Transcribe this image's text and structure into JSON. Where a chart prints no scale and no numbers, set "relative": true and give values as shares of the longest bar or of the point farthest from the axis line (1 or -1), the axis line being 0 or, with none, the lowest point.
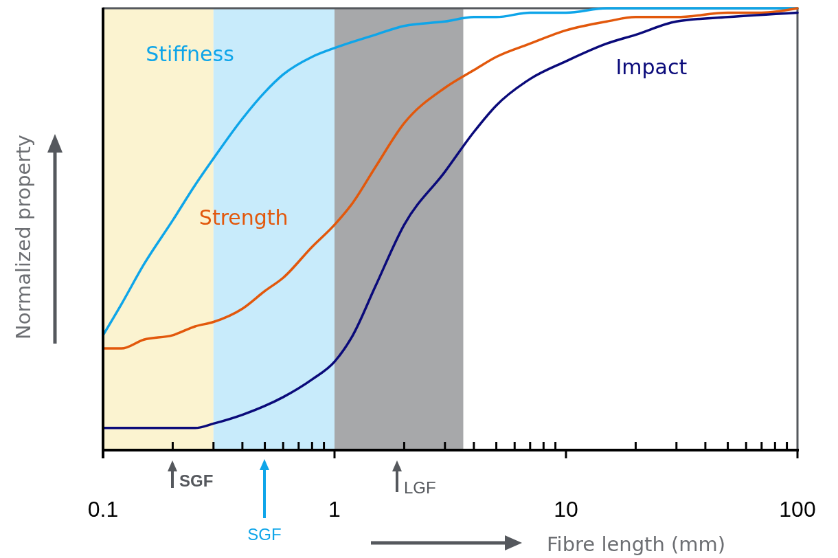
{
  "chart_data": {
    "type": "line",
    "relative": true,
    "log": "x",
    "xlabel": "Fibre length (mm)",
    "ylabel": "Normalized property",
    "grid": false,
    "marker": "none",
    "line_style": "solid",
    "xlim": [
      0.1,
      100
    ],
    "xticks": [
      0.1,
      {
        "value": 0.2,
        "label": null
      },
      {
        "value": 0.3,
        "label": null
      },
      {
        "value": 0.4,
        "label": null
      },
      {
        "value": 0.5,
        "label": null
      },
      {
        "value": 0.6,
        "label": null
      },
      {
        "value": 0.7,
        "label": null
      },
      {
        "value": 0.8,
        "label": null
      },
      {
        "value": 0.9,
        "label": null
      },
      1,
      {
        "value": 2,
        "label": null
      },
      {
        "value": 3,
        "label": null
      },
      {
        "value": 4,
        "label": null
      },
      {
        "value": 5,
        "label": null
      },
      {
        "value": 6,
        "label": null
      },
      {
        "value": 7,
        "label": null
      },
      {
        "value": 8,
        "label": null
      },
      {
        "value": 9,
        "label": null
      },
      10,
      {
        "value": 20,
        "label": null
      },
      {
        "value": 30,
        "label": null
      },
      {
        "value": 40,
        "label": null
      },
      {
        "value": 50,
        "label": null
      },
      {
        "value": 60,
        "label": null
      },
      {
        "value": 70,
        "label": null
      },
      {
        "value": 80,
        "label": null
      },
      {
        "value": 90,
        "label": null
      },
      100
    ],
    "bands": [
      {
        "axis": "x",
        "from": 0.1,
        "to": 0.3,
        "color": "#fbf3d0"
      },
      {
        "axis": "x",
        "from": 0.3,
        "to": 1,
        "color": "#c8ebfb"
      },
      {
        "axis": "x",
        "from": 1,
        "to": 3.6,
        "color": "#a7a8aa"
      }
    ],
    "series": [
      {
        "name": "Stiffness",
        "color": "#0ea5e9",
        "x": [
          0.1,
          0.12,
          0.15,
          0.2,
          0.25,
          0.3,
          0.4,
          0.5,
          0.6,
          0.8,
          1,
          1.5,
          2,
          3,
          4,
          5,
          7,
          10,
          15,
          20,
          30,
          50,
          70,
          100
        ],
        "values": [
          0.26,
          0.33,
          0.42,
          0.52,
          0.6,
          0.66,
          0.75,
          0.81,
          0.85,
          0.89,
          0.91,
          0.94,
          0.96,
          0.97,
          0.98,
          0.98,
          0.99,
          0.99,
          1,
          1,
          1,
          1,
          1,
          1
        ]
      },
      {
        "name": "Strength",
        "color": "#e2580c",
        "x": [
          0.1,
          0.12,
          0.15,
          0.2,
          0.25,
          0.3,
          0.4,
          0.5,
          0.6,
          0.8,
          1,
          1.2,
          1.5,
          2,
          3,
          4,
          5,
          7,
          10,
          15,
          20,
          30,
          50,
          70,
          100
        ],
        "values": [
          0.23,
          0.23,
          0.25,
          0.26,
          0.28,
          0.29,
          0.32,
          0.36,
          0.39,
          0.46,
          0.51,
          0.56,
          0.64,
          0.74,
          0.82,
          0.86,
          0.89,
          0.92,
          0.95,
          0.97,
          0.98,
          0.98,
          0.99,
          0.99,
          1
        ]
      },
      {
        "name": "Impact",
        "color": "#0a0a7a",
        "x": [
          0.1,
          0.15,
          0.2,
          0.25,
          0.3,
          0.4,
          0.5,
          0.6,
          0.8,
          1,
          1.2,
          1.5,
          2,
          3,
          4,
          5,
          7,
          10,
          15,
          20,
          30,
          50,
          100
        ],
        "values": [
          0.05,
          0.05,
          0.05,
          0.05,
          0.06,
          0.08,
          0.1,
          0.12,
          0.16,
          0.2,
          0.26,
          0.37,
          0.51,
          0.63,
          0.72,
          0.78,
          0.84,
          0.88,
          0.92,
          0.94,
          0.97,
          0.98,
          0.99
        ]
      }
    ],
    "annotations": [
      "SGF",
      "SGF",
      "LGF"
    ]
  }
}
